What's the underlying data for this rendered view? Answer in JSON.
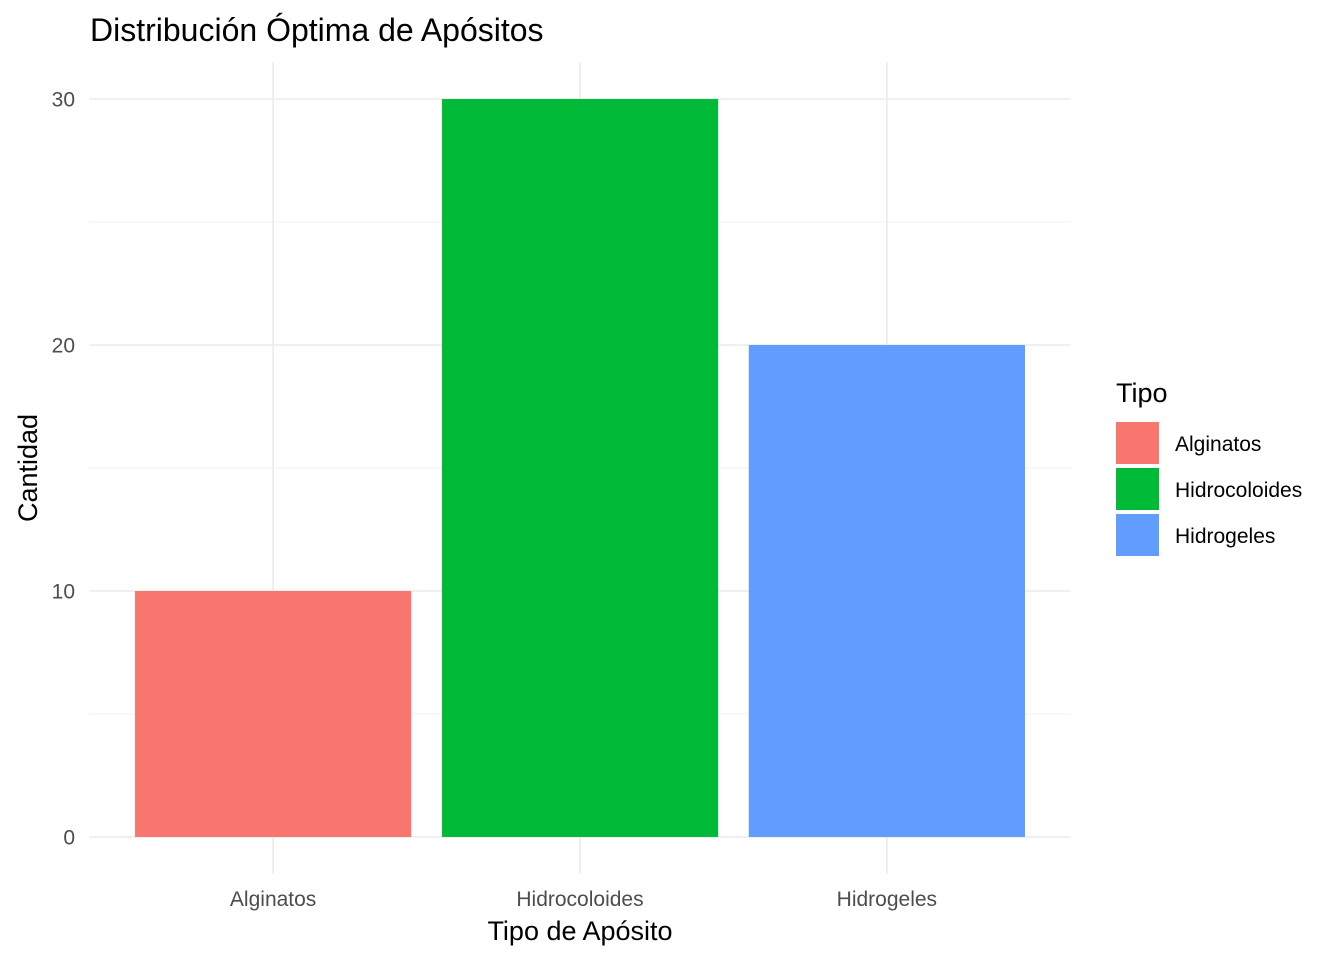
{
  "chart_data": {
    "type": "bar",
    "title": "Distribución Óptima de Apósitos",
    "xlabel": "Tipo de Apósito",
    "ylabel": "Cantidad",
    "categories": [
      "Alginatos",
      "Hidrocoloides",
      "Hidrogeles"
    ],
    "values": [
      10,
      30,
      20
    ],
    "colors": [
      "#F8766D",
      "#00BA38",
      "#619CFF"
    ],
    "ylim": [
      0,
      30
    ],
    "yticks": [
      0,
      10,
      20,
      30
    ],
    "grid": true,
    "legend": {
      "title": "Tipo",
      "position": "right",
      "entries": [
        "Alginatos",
        "Hidrocoloides",
        "Hidrogeles"
      ]
    }
  }
}
